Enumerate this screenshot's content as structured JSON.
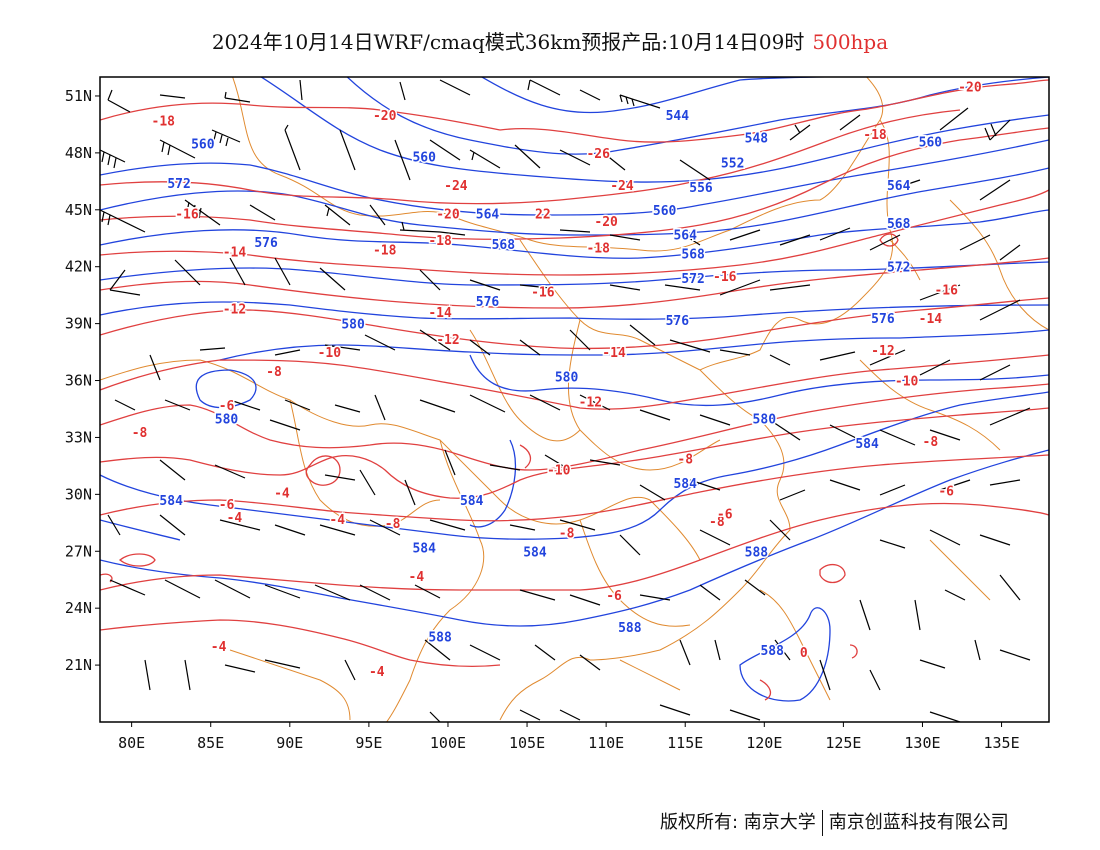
{
  "title": {
    "main": "2024年10月14日WRF/cmaq模式36km预报产品:10月14日09时",
    "level": "500hpa"
  },
  "axes": {
    "x_ticks": [
      "80E",
      "85E",
      "90E",
      "95E",
      "100E",
      "105E",
      "110E",
      "115E",
      "120E",
      "125E",
      "130E",
      "135E"
    ],
    "x_values": [
      80,
      85,
      90,
      95,
      100,
      105,
      110,
      115,
      120,
      125,
      130,
      135
    ],
    "y_ticks": [
      "51N",
      "48N",
      "45N",
      "42N",
      "39N",
      "36N",
      "33N",
      "30N",
      "27N",
      "24N",
      "21N"
    ],
    "y_values": [
      51,
      48,
      45,
      42,
      39,
      36,
      33,
      30,
      27,
      24,
      21
    ],
    "lon_range": [
      78,
      138
    ],
    "lat_range": [
      18,
      52
    ]
  },
  "colors": {
    "height_contour": "#2244dd",
    "temperature_contour": "#e03030",
    "boundary": "#e08a30",
    "wind_barb": "#000000"
  },
  "footer": {
    "left": "版权所有: 南京大学",
    "right": "南京创蓝科技有限公司"
  },
  "labels": {
    "height": [
      {
        "text": "544",
        "lon": 114.5,
        "lat": 50.0
      },
      {
        "text": "548",
        "lon": 119.5,
        "lat": 48.8
      },
      {
        "text": "552",
        "lon": 118.0,
        "lat": 47.5
      },
      {
        "text": "556",
        "lon": 116.0,
        "lat": 46.2
      },
      {
        "text": "560",
        "lon": 84.5,
        "lat": 48.5
      },
      {
        "text": "560",
        "lon": 98.5,
        "lat": 47.8
      },
      {
        "text": "560",
        "lon": 130.5,
        "lat": 48.6
      },
      {
        "text": "564",
        "lon": 102.5,
        "lat": 44.8
      },
      {
        "text": "564",
        "lon": 115.0,
        "lat": 43.7
      },
      {
        "text": "564",
        "lon": 128.5,
        "lat": 46.3
      },
      {
        "text": "560",
        "lon": 113.7,
        "lat": 45.0
      },
      {
        "text": "568",
        "lon": 103.5,
        "lat": 43.2
      },
      {
        "text": "568",
        "lon": 115.5,
        "lat": 42.7
      },
      {
        "text": "568",
        "lon": 128.5,
        "lat": 44.3
      },
      {
        "text": "572",
        "lon": 83.0,
        "lat": 46.4
      },
      {
        "text": "572",
        "lon": 115.5,
        "lat": 41.4
      },
      {
        "text": "572",
        "lon": 128.5,
        "lat": 42.0
      },
      {
        "text": "576",
        "lon": 88.5,
        "lat": 43.3
      },
      {
        "text": "576",
        "lon": 102.5,
        "lat": 40.2
      },
      {
        "text": "576",
        "lon": 114.5,
        "lat": 39.2
      },
      {
        "text": "576",
        "lon": 127.5,
        "lat": 39.3
      },
      {
        "text": "580",
        "lon": 94.0,
        "lat": 39.0
      },
      {
        "text": "580",
        "lon": 107.5,
        "lat": 36.2
      },
      {
        "text": "580",
        "lon": 120.0,
        "lat": 34.0
      },
      {
        "text": "580",
        "lon": 86.0,
        "lat": 34.0
      },
      {
        "text": "584",
        "lon": 126.5,
        "lat": 32.7
      },
      {
        "text": "584",
        "lon": 82.5,
        "lat": 29.7
      },
      {
        "text": "584",
        "lon": 101.5,
        "lat": 29.7
      },
      {
        "text": "584",
        "lon": 98.5,
        "lat": 27.2
      },
      {
        "text": "584",
        "lon": 105.5,
        "lat": 27.0
      },
      {
        "text": "584",
        "lon": 115.0,
        "lat": 30.6
      },
      {
        "text": "588",
        "lon": 119.5,
        "lat": 27.0
      },
      {
        "text": "588",
        "lon": 99.5,
        "lat": 22.5
      },
      {
        "text": "588",
        "lon": 111.5,
        "lat": 23.0
      },
      {
        "text": "588",
        "lon": 120.5,
        "lat": 21.8
      }
    ],
    "temperature": [
      {
        "text": "-20",
        "lon": 96.0,
        "lat": 50.0
      },
      {
        "text": "-20",
        "lon": 133.0,
        "lat": 51.5
      },
      {
        "text": "-18",
        "lon": 82.0,
        "lat": 49.7
      },
      {
        "text": "-18",
        "lon": 127.0,
        "lat": 49.0
      },
      {
        "text": "-16",
        "lon": 83.5,
        "lat": 44.8
      },
      {
        "text": "-26",
        "lon": 109.5,
        "lat": 48.0
      },
      {
        "text": "-24",
        "lon": 100.5,
        "lat": 46.3
      },
      {
        "text": "-24",
        "lon": 111.0,
        "lat": 46.3
      },
      {
        "text": "-20",
        "lon": 100.0,
        "lat": 44.8
      },
      {
        "text": "22",
        "lon": 106.0,
        "lat": 44.8
      },
      {
        "text": "-20",
        "lon": 110.0,
        "lat": 44.4
      },
      {
        "text": "-18",
        "lon": 96.0,
        "lat": 42.9
      },
      {
        "text": "-18",
        "lon": 99.5,
        "lat": 43.4
      },
      {
        "text": "-18",
        "lon": 109.5,
        "lat": 43.0
      },
      {
        "text": "-16",
        "lon": 117.5,
        "lat": 41.5
      },
      {
        "text": "-16",
        "lon": 106.0,
        "lat": 40.7
      },
      {
        "text": "-16",
        "lon": 131.5,
        "lat": 40.8
      },
      {
        "text": "-14",
        "lon": 86.5,
        "lat": 42.8
      },
      {
        "text": "-14",
        "lon": 99.5,
        "lat": 39.6
      },
      {
        "text": "-14",
        "lon": 110.5,
        "lat": 37.5
      },
      {
        "text": "-14",
        "lon": 130.5,
        "lat": 39.3
      },
      {
        "text": "-12",
        "lon": 86.5,
        "lat": 39.8
      },
      {
        "text": "-12",
        "lon": 100.0,
        "lat": 38.2
      },
      {
        "text": "-12",
        "lon": 109.0,
        "lat": 34.9
      },
      {
        "text": "-12",
        "lon": 127.5,
        "lat": 37.6
      },
      {
        "text": "-10",
        "lon": 92.5,
        "lat": 37.5
      },
      {
        "text": "-10",
        "lon": 107.0,
        "lat": 31.3
      },
      {
        "text": "-10",
        "lon": 129.0,
        "lat": 36.0
      },
      {
        "text": "-8",
        "lon": 89.0,
        "lat": 36.5
      },
      {
        "text": "-8",
        "lon": 80.5,
        "lat": 33.3
      },
      {
        "text": "-8",
        "lon": 115.0,
        "lat": 31.9
      },
      {
        "text": "-8",
        "lon": 96.5,
        "lat": 28.5
      },
      {
        "text": "-8",
        "lon": 107.5,
        "lat": 28.0
      },
      {
        "text": "-8",
        "lon": 117.0,
        "lat": 28.6
      },
      {
        "text": "-8",
        "lon": 130.5,
        "lat": 32.8
      },
      {
        "text": "-6",
        "lon": 86.0,
        "lat": 34.7
      },
      {
        "text": "-6",
        "lon": 86.0,
        "lat": 29.5
      },
      {
        "text": "-6",
        "lon": 110.5,
        "lat": 24.7
      },
      {
        "text": "-6",
        "lon": 117.5,
        "lat": 29.0
      },
      {
        "text": "-6",
        "lon": 131.5,
        "lat": 30.2
      },
      {
        "text": "-4",
        "lon": 89.5,
        "lat": 30.1
      },
      {
        "text": "-4",
        "lon": 86.5,
        "lat": 28.8
      },
      {
        "text": "-4",
        "lon": 93.0,
        "lat": 28.7
      },
      {
        "text": "-4",
        "lon": 98.0,
        "lat": 25.7
      },
      {
        "text": "-4",
        "lon": 85.5,
        "lat": 22.0
      },
      {
        "text": "-4",
        "lon": 95.5,
        "lat": 20.7
      },
      {
        "text": "0",
        "lon": 122.5,
        "lat": 21.7
      }
    ]
  }
}
